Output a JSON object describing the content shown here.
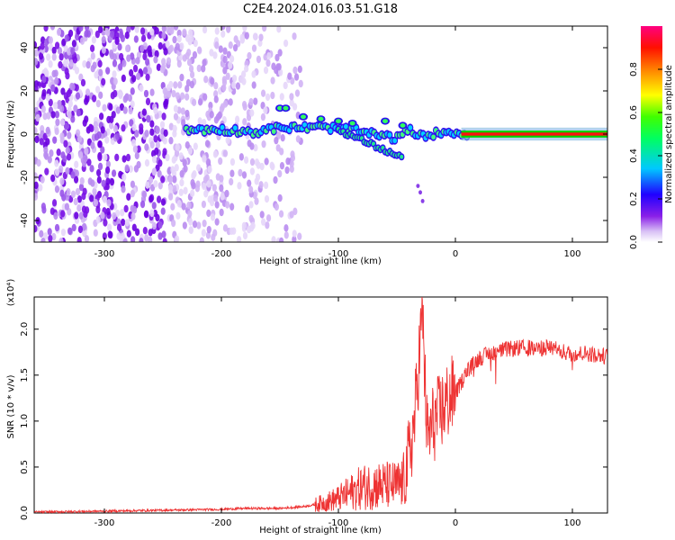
{
  "title": "C2E4.2024.016.03.51.G18",
  "chart_data": [
    {
      "type": "heatmap",
      "xlabel": "Height of straight line (km)",
      "ylabel": "Frequency (Hz)",
      "xlim": [
        -360,
        130
      ],
      "ylim": [
        -50,
        50
      ],
      "xticks": [
        -300,
        -200,
        -100,
        0,
        100
      ],
      "yticks": [
        -40,
        -20,
        0,
        20,
        40
      ],
      "colorbar": {
        "label": "Normalized spectral amplitude",
        "range": [
          0,
          1
        ],
        "ticks": [
          "0.0",
          "0.2",
          "0.4",
          "0.6",
          "0.8"
        ],
        "colors": [
          "#ffffff",
          "#c8a0f0",
          "#7a00e8",
          "#0000ff",
          "#00d8ff",
          "#00ff00",
          "#ffff00",
          "#ff8000",
          "#ff0000",
          "#ff0080"
        ]
      },
      "features": {
        "noise_region_x": [
          -360,
          -130
        ],
        "signal_band": [
          [
            -230,
            2
          ],
          [
            -200,
            2
          ],
          [
            -170,
            1
          ],
          [
            -150,
            3
          ],
          [
            -130,
            3
          ],
          [
            -110,
            3
          ],
          [
            -90,
            2
          ],
          [
            -70,
            0
          ],
          [
            -50,
            -2
          ],
          [
            -40,
            2
          ],
          [
            -30,
            -1
          ],
          [
            -10,
            1
          ],
          [
            0,
            1
          ],
          [
            10,
            0
          ],
          [
            130,
            0
          ]
        ]
      }
    },
    {
      "type": "line",
      "xlabel": "Height of straight line (km)",
      "ylabel": "SNR (10 * v/v)",
      "yscale_label": "(x10⁴)",
      "xlim": [
        -360,
        130
      ],
      "ylim": [
        0,
        2.35
      ],
      "xticks": [
        -300,
        -200,
        -100,
        0,
        100
      ],
      "yticks": [
        "0.0",
        "0.5",
        "1.0",
        "1.5",
        "2.0"
      ],
      "series": [
        {
          "color": "#ee3333",
          "x": [
            -360,
            -300,
            -250,
            -200,
            -180,
            -150,
            -130,
            -120,
            -110,
            -100,
            -90,
            -80,
            -70,
            -60,
            -50,
            -45,
            -40,
            -35,
            -32,
            -30,
            -28,
            -26,
            -24,
            -20,
            -15,
            -10,
            -5,
            0,
            5,
            10,
            20,
            30,
            40,
            50,
            60,
            70,
            80,
            90,
            100,
            110,
            120,
            130
          ],
          "y": [
            0.01,
            0.02,
            0.03,
            0.04,
            0.05,
            0.05,
            0.07,
            0.09,
            0.12,
            0.16,
            0.22,
            0.28,
            0.3,
            0.3,
            0.3,
            0.32,
            0.55,
            1.0,
            1.5,
            1.9,
            2.2,
            1.4,
            0.8,
            0.95,
            1.05,
            1.15,
            1.25,
            1.3,
            1.42,
            1.55,
            1.68,
            1.74,
            1.77,
            1.79,
            1.8,
            1.78,
            1.81,
            1.76,
            1.73,
            1.74,
            1.72,
            1.7
          ]
        }
      ]
    }
  ]
}
